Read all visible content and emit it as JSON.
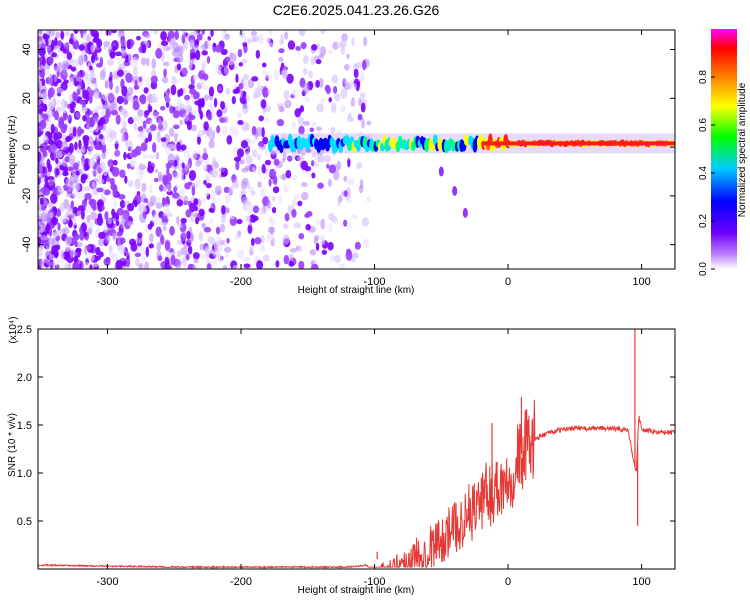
{
  "title": "C2E6.2025.041.23.26.G26",
  "colors": {
    "snr_line": "#e53935",
    "central_band": "#ff1a1a",
    "scatter_colors": [
      "#7a00ff",
      "#9a3cff",
      "#b57dff",
      "#d2b6ff",
      "#e8dcff"
    ]
  },
  "chart_data": [
    {
      "type": "heatmap",
      "title": "C2E6.2025.041.23.26.G26",
      "xlabel": "Height of straight line (km)",
      "ylabel": "Frequency (Hz)",
      "xlim": [
        -352,
        125
      ],
      "ylim": [
        -50,
        48
      ],
      "xticks": [
        -300,
        -200,
        -100,
        0,
        100
      ],
      "yticks": [
        -40,
        -20,
        0,
        20,
        40
      ],
      "grid": false,
      "colorbar": {
        "label": "Normalized spectral amplitude",
        "range": [
          0,
          1
        ],
        "ticks": [
          "0.0",
          "0.2",
          "0.4",
          "0.6",
          "0.8"
        ],
        "colormap": [
          "#ffffff",
          "#a020f0",
          "#0000ff",
          "#00ffff",
          "#00ff00",
          "#ffff00",
          "#ff8000",
          "#ff0000",
          "#ff00ff"
        ]
      },
      "description_points": {
        "noise_region_x": [
          -352,
          -122
        ],
        "signal_onset_x": -178,
        "signal_frequency_hz": 1.5,
        "faint_branch": [
          {
            "x": -50,
            "y": -10
          },
          {
            "x": -40,
            "y": -18
          },
          {
            "x": -32,
            "y": -27
          }
        ],
        "peak_amplitude_near_x": [
          -20,
          125
        ]
      }
    },
    {
      "type": "line",
      "xlabel": "Height of straight line (km)",
      "ylabel": "SNR (10 * v/v)",
      "multiplier_label": "(x10⁴)",
      "xlim": [
        -352,
        125
      ],
      "ylim": [
        0,
        2.5
      ],
      "xticks": [
        -300,
        -200,
        -100,
        0,
        100
      ],
      "yticks": [
        0.5,
        1.0,
        1.5,
        2.0,
        2.5
      ],
      "ytick_labels": [
        "0.5",
        "1.0",
        "1.5",
        "2.0",
        "2.5"
      ],
      "grid": false,
      "series": [
        {
          "color": "#e53935",
          "x": [
            -352,
            -300,
            -250,
            -200,
            -150,
            -120,
            -105,
            -100,
            -90,
            -80,
            -70,
            -60,
            -50,
            -40,
            -30,
            -20,
            -10,
            0,
            10,
            20,
            30,
            40,
            50,
            60,
            70,
            80,
            90,
            93,
            96,
            98,
            100,
            110,
            125
          ],
          "y": [
            0.04,
            0.03,
            0.02,
            0.02,
            0.02,
            0.02,
            0.04,
            0.1,
            0.12,
            0.18,
            0.25,
            0.32,
            0.4,
            0.5,
            0.62,
            0.75,
            0.85,
            0.95,
            1.2,
            1.35,
            1.42,
            1.45,
            1.47,
            1.46,
            1.47,
            1.46,
            1.45,
            1.2,
            1.0,
            1.6,
            1.45,
            1.43,
            1.42
          ]
        }
      ],
      "spikes": [
        {
          "x": -98,
          "y": 0.18
        },
        {
          "x": -20,
          "y": 0.95
        },
        {
          "x": -12,
          "y": 1.52
        },
        {
          "x": 10,
          "y": 1.79
        },
        {
          "x": 95,
          "y": 2.58
        },
        {
          "x": 97,
          "y": 0.45
        }
      ]
    }
  ]
}
